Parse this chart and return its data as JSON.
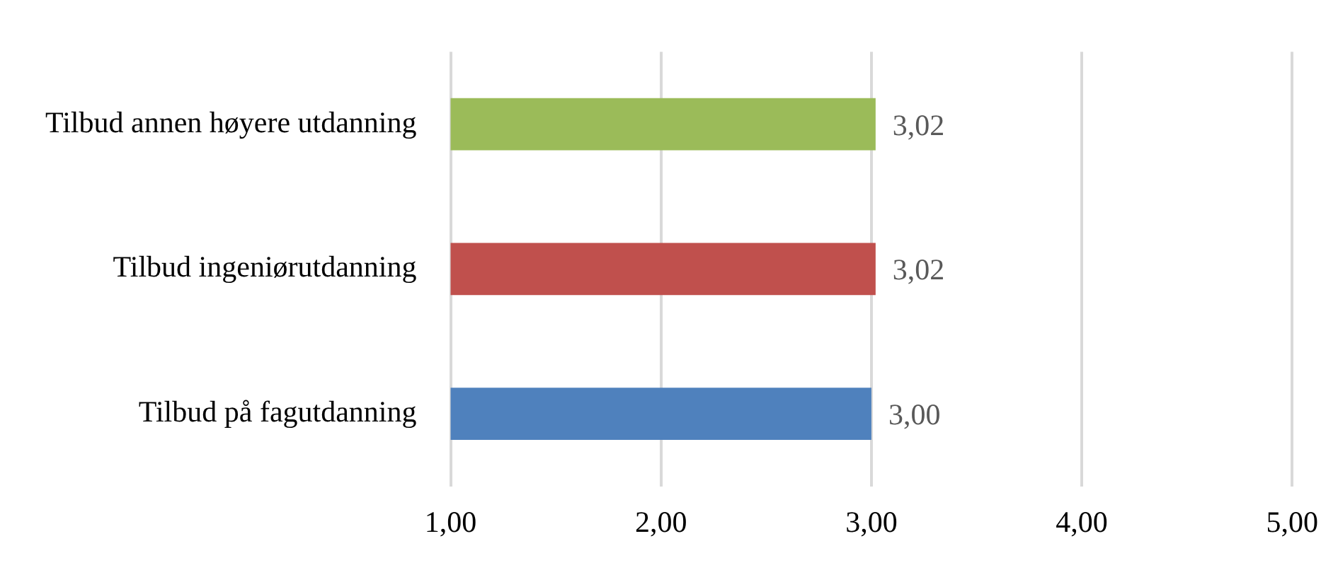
{
  "chart_data": {
    "type": "bar",
    "orientation": "horizontal",
    "categories": [
      "Tilbud annen høyere utdanning",
      "Tilbud ingeniørutdanning",
      "Tilbud på fagutdanning"
    ],
    "values": [
      3.02,
      3.02,
      3.0
    ],
    "colors": [
      "#9bbb59",
      "#c0504d",
      "#4f81bd"
    ],
    "value_labels": [
      "3,02",
      "3,02",
      "3,00"
    ],
    "xlim": [
      1,
      5
    ],
    "xticks": [
      {
        "value": 1,
        "label": "1,00"
      },
      {
        "value": 2,
        "label": "2,00"
      },
      {
        "value": 3,
        "label": "3,00"
      },
      {
        "value": 4,
        "label": "4,00"
      },
      {
        "value": 5,
        "label": "5,00"
      }
    ],
    "grid": "x",
    "legend": false
  }
}
